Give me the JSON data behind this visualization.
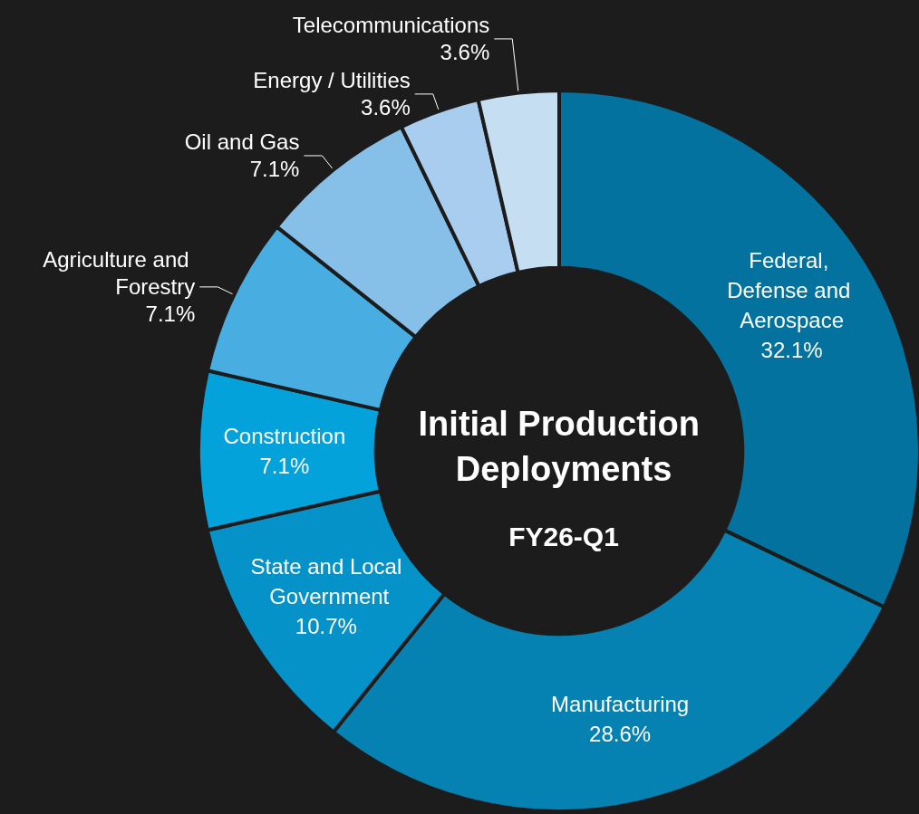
{
  "chart_data": {
    "type": "donut",
    "title": "Initial Production Deployments",
    "subtitle": "FY26-Q1",
    "categories": [
      "Federal, Defense and Aerospace",
      "Manufacturing",
      "State and Local Government",
      "Construction",
      "Agriculture and Forestry",
      "Oil and Gas",
      "Energy / Utilities",
      "Telecommunications"
    ],
    "values": [
      32.1,
      28.6,
      10.7,
      7.1,
      7.1,
      7.1,
      3.6,
      3.6
    ],
    "colors": [
      "#03729e",
      "#0682b2",
      "#0592c8",
      "#04a2db",
      "#48aee1",
      "#86bfe7",
      "#a9cdee",
      "#c6def2"
    ],
    "value_labels": [
      "32.1%",
      "28.6%",
      "10.7%",
      "7.1%",
      "7.1%",
      "7.1%",
      "3.6%",
      "3.6%"
    ],
    "legend": false
  }
}
